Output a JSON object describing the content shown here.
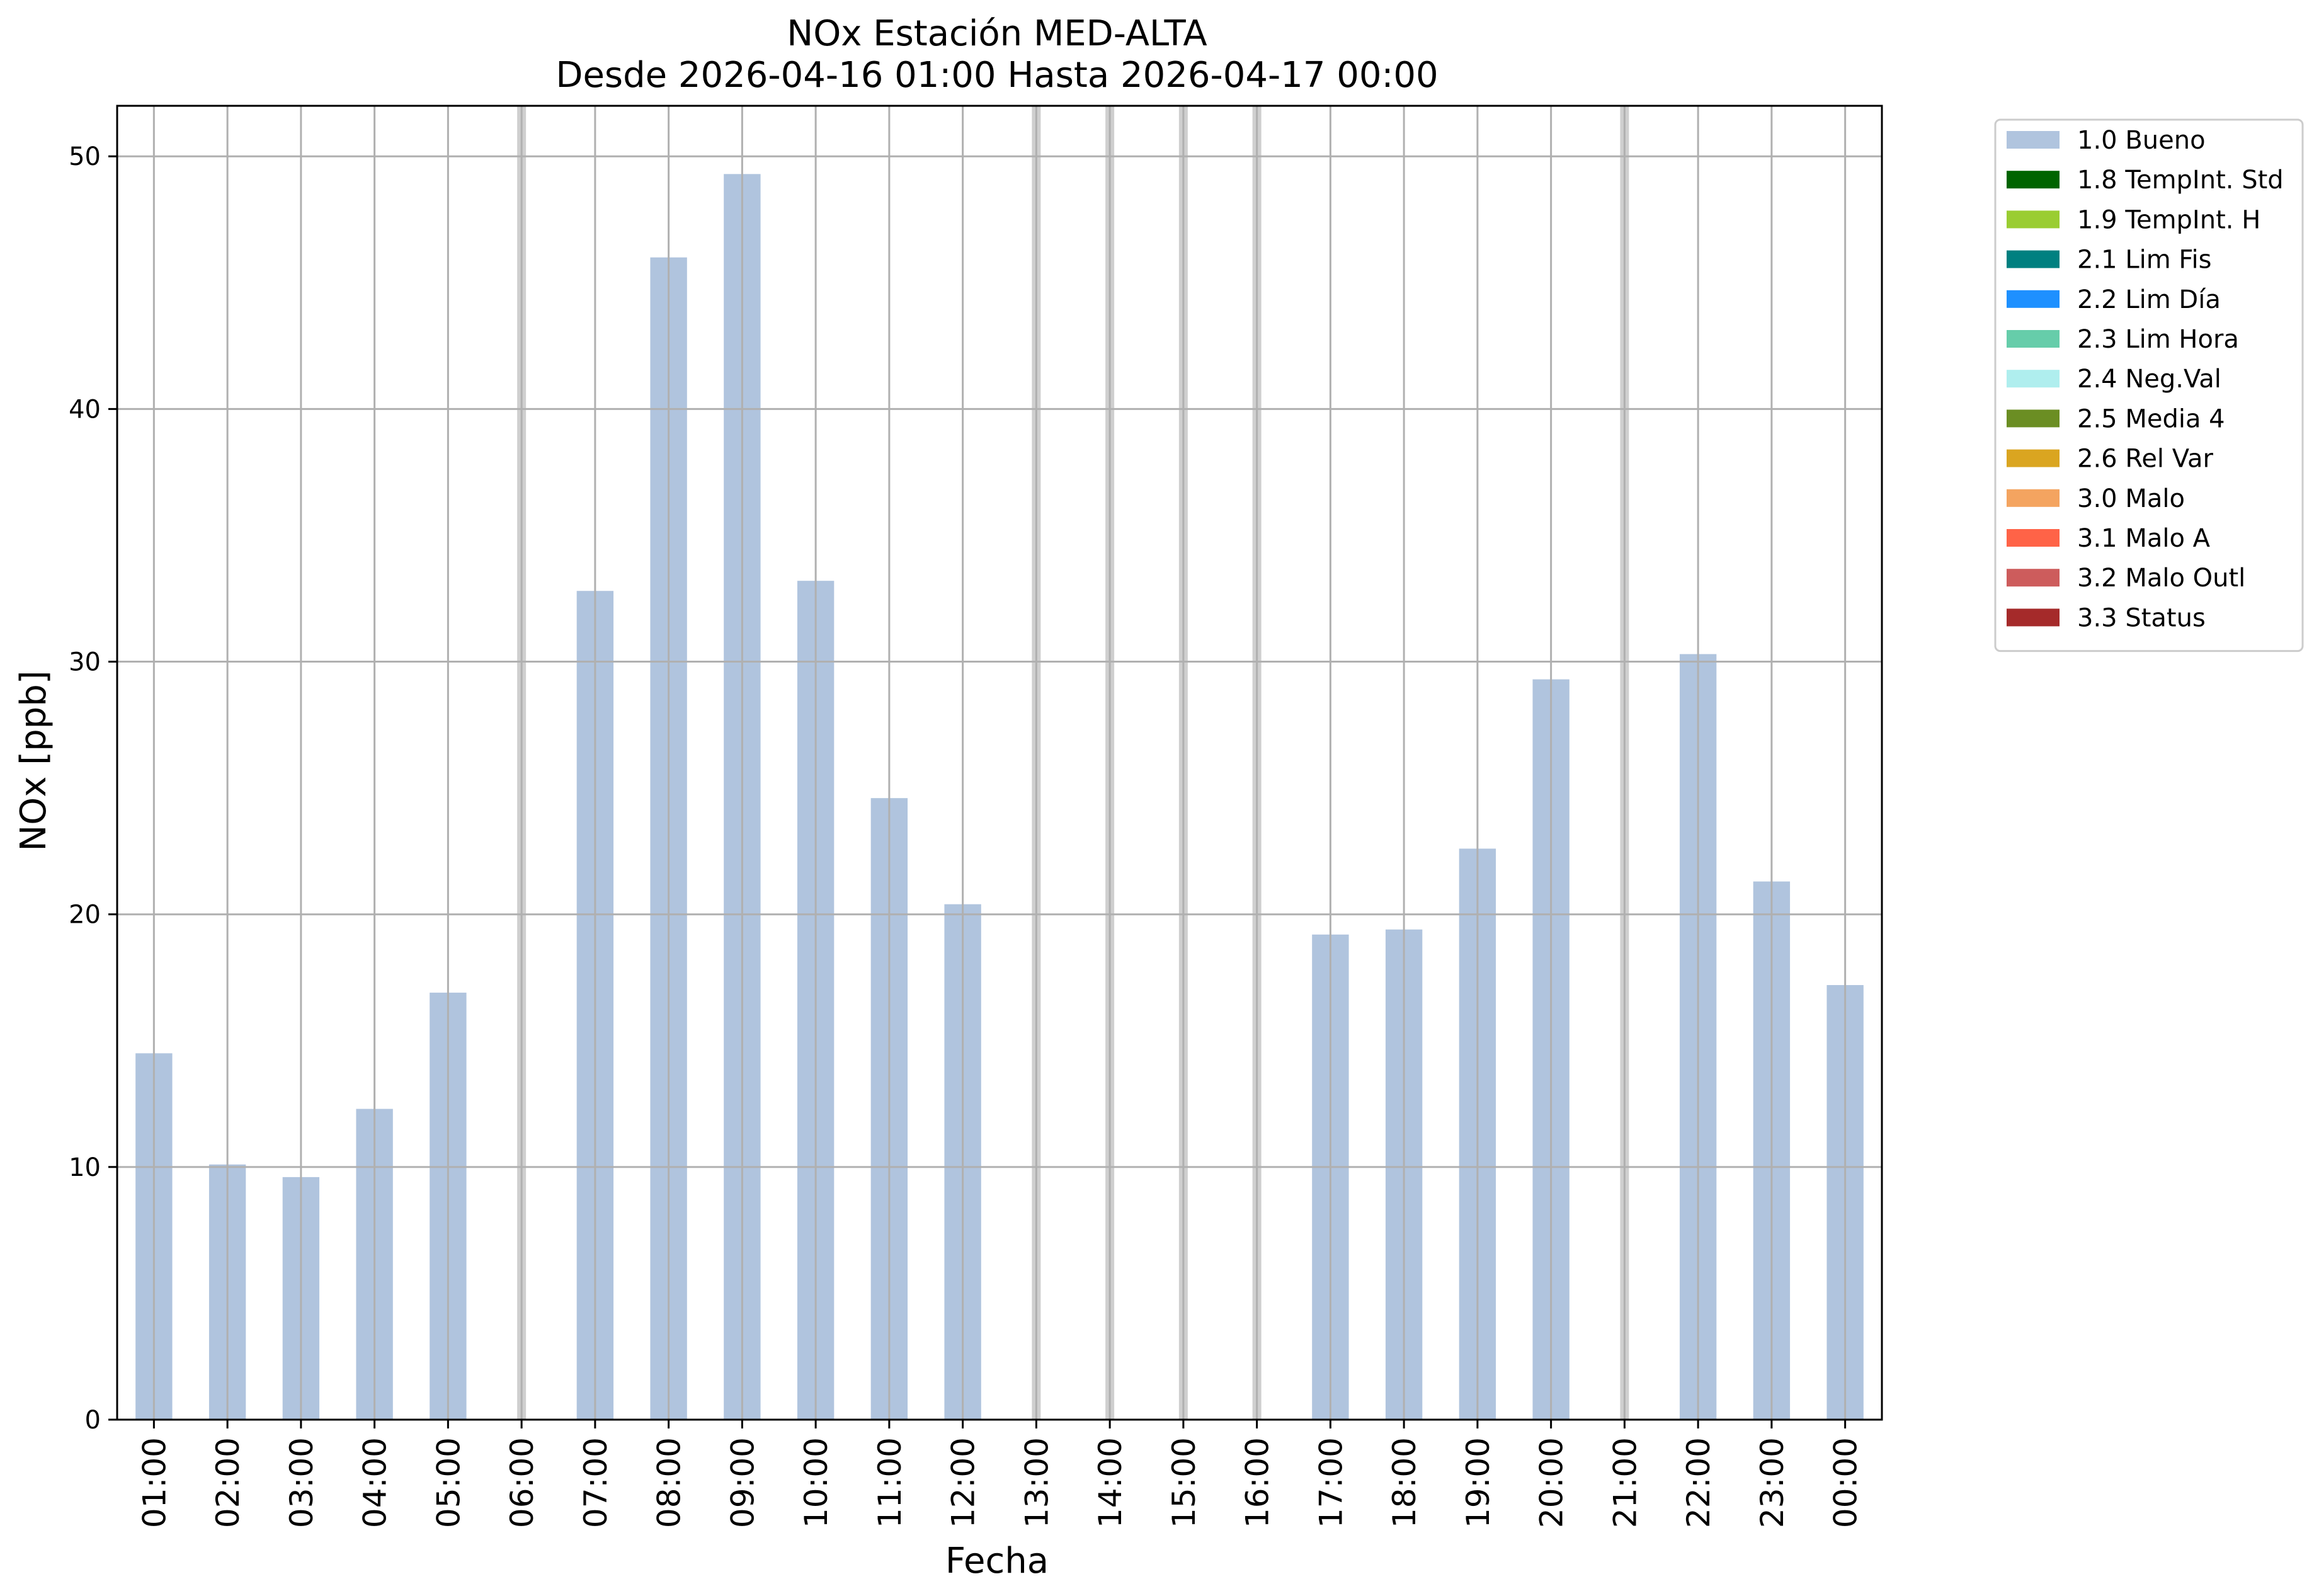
{
  "chart_data": {
    "type": "bar",
    "title_line1": "NOx Estación MED-ALTA",
    "title_line2": "Desde 2026-04-16 01:00 Hasta 2026-04-17 00:00",
    "xlabel": "Fecha",
    "ylabel": "NOx [ppb]",
    "ylim": [
      0,
      52
    ],
    "yticks": [
      0,
      10,
      20,
      30,
      40,
      50
    ],
    "grid": true,
    "legend_position": "outside-top-right",
    "categories": [
      "01:00",
      "02:00",
      "03:00",
      "04:00",
      "05:00",
      "06:00",
      "07:00",
      "08:00",
      "09:00",
      "10:00",
      "11:00",
      "12:00",
      "13:00",
      "14:00",
      "15:00",
      "16:00",
      "17:00",
      "18:00",
      "19:00",
      "20:00",
      "21:00",
      "22:00",
      "23:00",
      "00:00"
    ],
    "series": [
      {
        "name": "1.0 Bueno",
        "color": "#b0c4de",
        "values": [
          14.5,
          10.1,
          9.6,
          12.3,
          16.9,
          null,
          32.8,
          46.0,
          49.3,
          33.2,
          24.6,
          20.4,
          null,
          null,
          null,
          null,
          19.2,
          19.4,
          22.6,
          29.3,
          null,
          30.3,
          21.3,
          17.2
        ]
      }
    ],
    "missing_hours": [
      "06:00",
      "13:00",
      "14:00",
      "15:00",
      "16:00",
      "21:00"
    ],
    "legend": [
      {
        "label": "1.0 Bueno",
        "color": "#b0c4de"
      },
      {
        "label": "1.8 TempInt. Std",
        "color": "#006400"
      },
      {
        "label": "1.9 TempInt. H",
        "color": "#9acd32"
      },
      {
        "label": "2.1 Lim Fis",
        "color": "#008080"
      },
      {
        "label": "2.2 Lim Día",
        "color": "#1e90ff"
      },
      {
        "label": "2.3 Lim Hora",
        "color": "#66cdaa"
      },
      {
        "label": "2.4 Neg.Val",
        "color": "#afeeee"
      },
      {
        "label": "2.5 Media 4",
        "color": "#6b8e23"
      },
      {
        "label": "2.6 Rel Var",
        "color": "#daa520"
      },
      {
        "label": "3.0 Malo",
        "color": "#f4a460"
      },
      {
        "label": "3.1 Malo A",
        "color": "#ff6347"
      },
      {
        "label": "3.2 Malo Outl",
        "color": "#cd5c5c"
      },
      {
        "label": "3.3 Status",
        "color": "#a52a2a"
      }
    ]
  }
}
